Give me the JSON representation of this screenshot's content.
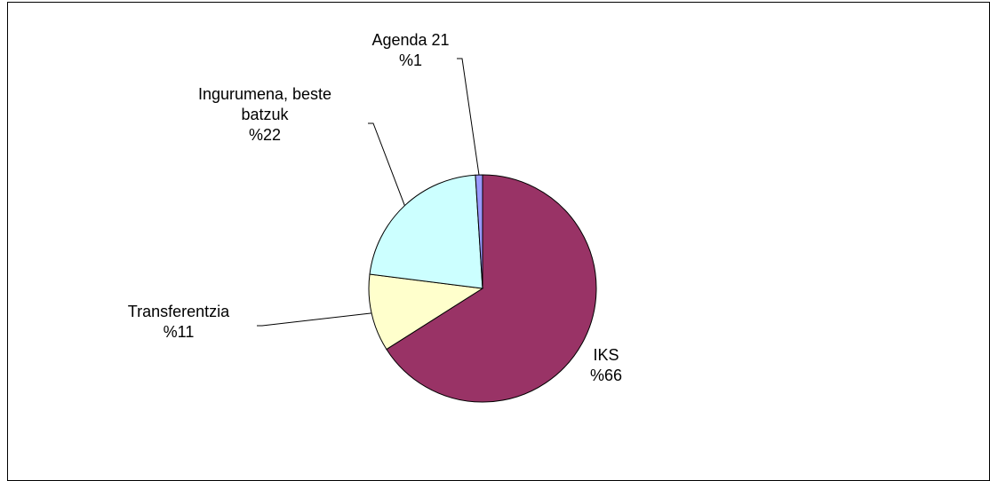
{
  "chart_data": {
    "type": "pie",
    "title": "",
    "start_angle_deg": 0,
    "direction": "clockwise",
    "slices": [
      {
        "label_lines": [
          "IKS"
        ],
        "percent_label": "%66",
        "value": 66,
        "color": "#993366"
      },
      {
        "label_lines": [
          "Transferentzia"
        ],
        "percent_label": "%11",
        "value": 11,
        "color": "#FFFFCC"
      },
      {
        "label_lines": [
          "Ingurumena, beste",
          "batzuk"
        ],
        "percent_label": "%22",
        "value": 22,
        "color": "#CCFFFF"
      },
      {
        "label_lines": [
          "Agenda 21"
        ],
        "percent_label": "%1",
        "value": 1,
        "color": "#9999FF"
      }
    ]
  }
}
